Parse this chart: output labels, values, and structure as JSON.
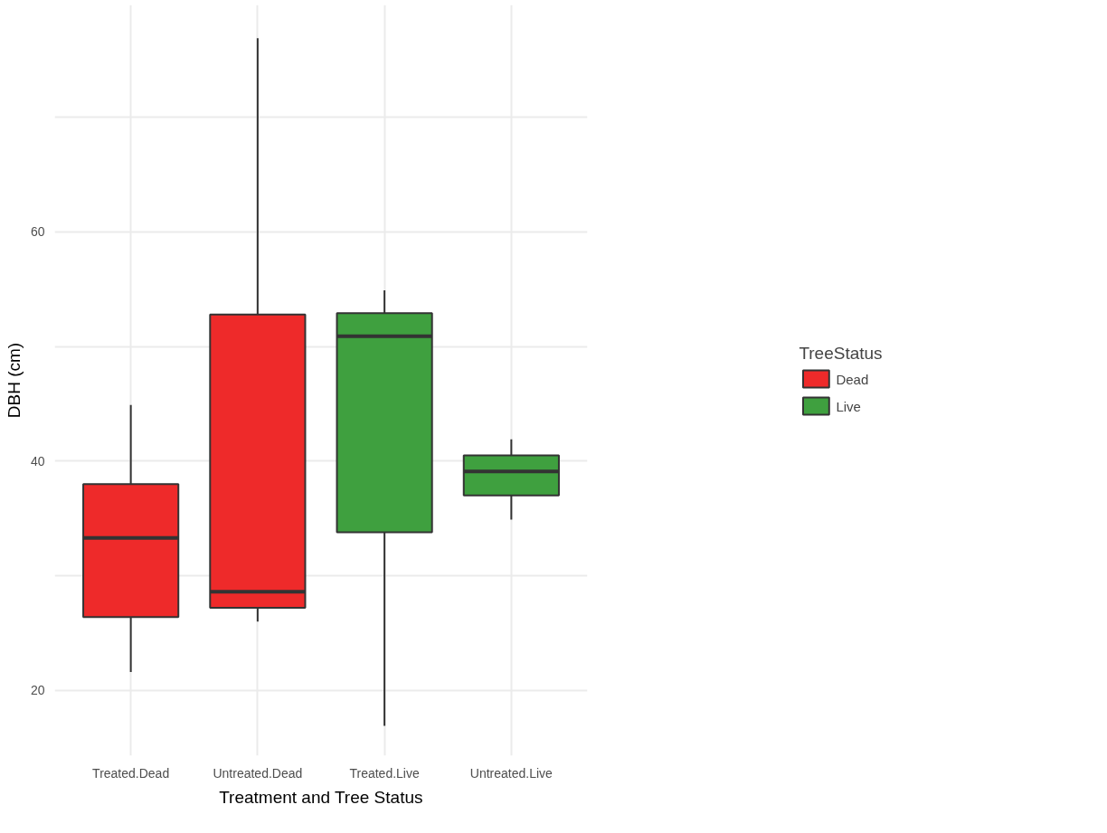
{
  "chart_data": {
    "type": "box",
    "categories": [
      "Treated.Dead",
      "Untreated.Dead",
      "Treated.Live",
      "Untreated.Live"
    ],
    "xlabel": "Treatment and Tree Status",
    "ylabel": "DBH (cm)",
    "legend_title": "TreeStatus",
    "series": [
      {
        "name": "Dead",
        "color": "#ee2a2a",
        "boxes": [
          {
            "low": 21.6,
            "q1": 26.4,
            "median": 33.3,
            "q3": 38.0,
            "high": 44.9
          },
          {
            "low": 26.0,
            "q1": 27.2,
            "median": 28.6,
            "q3": 52.8,
            "high": 76.9
          },
          null,
          null
        ]
      },
      {
        "name": "Live",
        "color": "#3fa03f",
        "boxes": [
          null,
          null,
          {
            "low": 16.9,
            "q1": 33.8,
            "median": 50.9,
            "q3": 52.9,
            "high": 54.9
          },
          {
            "low": 34.9,
            "q1": 37.0,
            "median": 39.1,
            "q3": 40.5,
            "high": 41.9
          }
        ]
      }
    ],
    "ylim": [
      14.3,
      79.8
    ],
    "yticks": [
      20,
      {
        "value": 30,
        "label": null
      },
      40,
      {
        "value": 50,
        "label": null
      },
      60,
      {
        "value": 70,
        "label": null
      }
    ],
    "grid": true,
    "legend": "right"
  }
}
